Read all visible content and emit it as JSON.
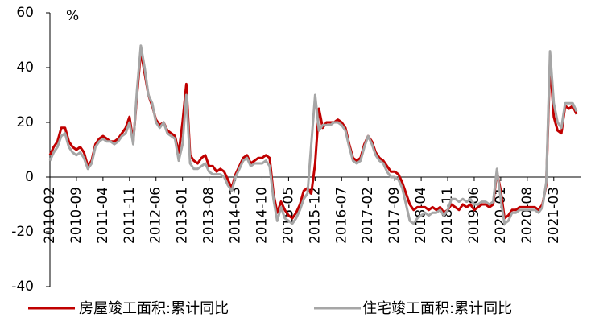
{
  "chart_data": {
    "type": "line",
    "unit_label": "%",
    "categories": [
      "2010-02",
      null,
      null,
      null,
      null,
      null,
      null,
      "2010-09",
      null,
      null,
      null,
      null,
      null,
      null,
      "2011-04",
      null,
      null,
      null,
      null,
      null,
      null,
      "2011-11",
      null,
      null,
      null,
      null,
      null,
      null,
      "2012-06",
      null,
      null,
      null,
      null,
      null,
      null,
      "2013-01",
      null,
      null,
      null,
      null,
      null,
      null,
      "2013-08",
      null,
      null,
      null,
      null,
      null,
      null,
      "2014-03",
      null,
      null,
      null,
      null,
      null,
      null,
      "2014-10",
      null,
      null,
      null,
      null,
      null,
      null,
      "2015-05",
      null,
      null,
      null,
      null,
      null,
      null,
      "2015-12",
      null,
      null,
      null,
      null,
      null,
      null,
      "2016-07",
      null,
      null,
      null,
      null,
      null,
      null,
      "2017-02",
      null,
      null,
      null,
      null,
      null,
      null,
      "2017-09",
      null,
      null,
      null,
      null,
      null,
      null,
      "2018-04",
      null,
      null,
      null,
      null,
      null,
      null,
      "2018-11",
      null,
      null,
      null,
      null,
      null,
      null,
      "2019-06",
      null,
      null,
      null,
      null,
      null,
      null,
      "2020-01",
      null,
      null,
      null,
      null,
      null,
      null,
      "2020-08",
      null,
      null,
      null,
      null,
      null,
      null,
      "2021-03",
      null,
      null,
      null,
      null,
      null,
      null
    ],
    "series": [
      {
        "name": "房屋竣工面积:累计同比",
        "color": "#c00000",
        "values": [
          8,
          11,
          13,
          18,
          18,
          13,
          11,
          10,
          11,
          9,
          4,
          6,
          12,
          14,
          15,
          14,
          13,
          13,
          14,
          16,
          18,
          22,
          13,
          30,
          46,
          38,
          30,
          26,
          21,
          19,
          20,
          17,
          16,
          15,
          9,
          20,
          34,
          8,
          6,
          5,
          7,
          8,
          4,
          4,
          2,
          3,
          2,
          -1,
          -4,
          1,
          4,
          7,
          8,
          5,
          6,
          7,
          7,
          8,
          7,
          -6,
          -13,
          -9,
          -12,
          -14,
          -15,
          -13,
          -10,
          -5,
          -4,
          -6,
          5,
          25,
          18,
          20,
          20,
          20,
          21,
          20,
          18,
          12,
          7,
          6,
          7,
          12,
          15,
          13,
          9,
          7,
          6,
          4,
          2,
          2,
          1,
          -2,
          -6,
          -10,
          -12,
          -11,
          -11,
          -11,
          -12,
          -11,
          -12,
          -11,
          -13,
          -12,
          -10,
          -11,
          -12,
          -10,
          -11,
          -10,
          -12,
          -11,
          -10,
          -10,
          -11,
          -10,
          2,
          -5,
          -15,
          -14,
          -12,
          -12,
          -11,
          -11,
          -11,
          -11,
          -11,
          -12,
          -10,
          -3,
          42,
          22,
          17,
          16,
          26,
          25,
          26,
          23
        ]
      },
      {
        "name": "住宅竣工面积:累计同比",
        "color": "#a6a6a6",
        "values": [
          6,
          9,
          11,
          15,
          16,
          11,
          9,
          8,
          9,
          7,
          3,
          5,
          11,
          13,
          14,
          13,
          13,
          12,
          13,
          15,
          16,
          20,
          12,
          32,
          48,
          40,
          30,
          27,
          20,
          18,
          20,
          16,
          15,
          14,
          6,
          12,
          30,
          5,
          3,
          3,
          4,
          5,
          2,
          1,
          1,
          1,
          0,
          -3,
          -5,
          0,
          3,
          6,
          7,
          4,
          5,
          5,
          5,
          6,
          4,
          -8,
          -16,
          -11,
          -15,
          -16,
          -17,
          -15,
          -12,
          -8,
          -6,
          12,
          30,
          17,
          19,
          19,
          19,
          20,
          20,
          19,
          17,
          11,
          6,
          5,
          6,
          11,
          15,
          12,
          8,
          6,
          5,
          2,
          0,
          0,
          -1,
          -4,
          -10,
          -16,
          -17,
          -15,
          -14,
          -13,
          -14,
          -13,
          -13,
          -12,
          -14,
          -12,
          -8,
          -8,
          -9,
          -8,
          -9,
          -8,
          -10,
          -10,
          -9,
          -9,
          -10,
          -9,
          3,
          -8,
          -17,
          -16,
          -13,
          -13,
          -12,
          -12,
          -12,
          -12,
          -12,
          -13,
          -11,
          -2,
          46,
          27,
          20,
          18,
          27,
          27,
          27,
          24
        ]
      }
    ],
    "ylim": [
      -40,
      60
    ],
    "yticks": [
      -40,
      -20,
      0,
      20,
      40,
      60
    ],
    "grid": false,
    "legend": "bottom"
  }
}
